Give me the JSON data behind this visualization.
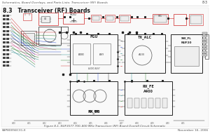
{
  "bg_color": "#ffffff",
  "header_text": "Schematics, Board Overlays, and Parts Lists: Transceiver (RF) Boards",
  "header_right": "8-3",
  "section_heading": "8.3   Transceiver (RF) Boards",
  "figure_caption": "Figure 8-1. NUF3577 700–800 MHz Transceiver (RF) Board Overall Circuit Schematic",
  "footer_left": "68P80094C31-E",
  "footer_right": "November 16, 2006",
  "colors": {
    "red": "#cc2222",
    "blue": "#2244cc",
    "green": "#227722",
    "teal": "#228888",
    "pink": "#cc4488",
    "black": "#222222",
    "gray": "#888888",
    "lgray": "#cccccc",
    "vlgray": "#eeeeee"
  }
}
